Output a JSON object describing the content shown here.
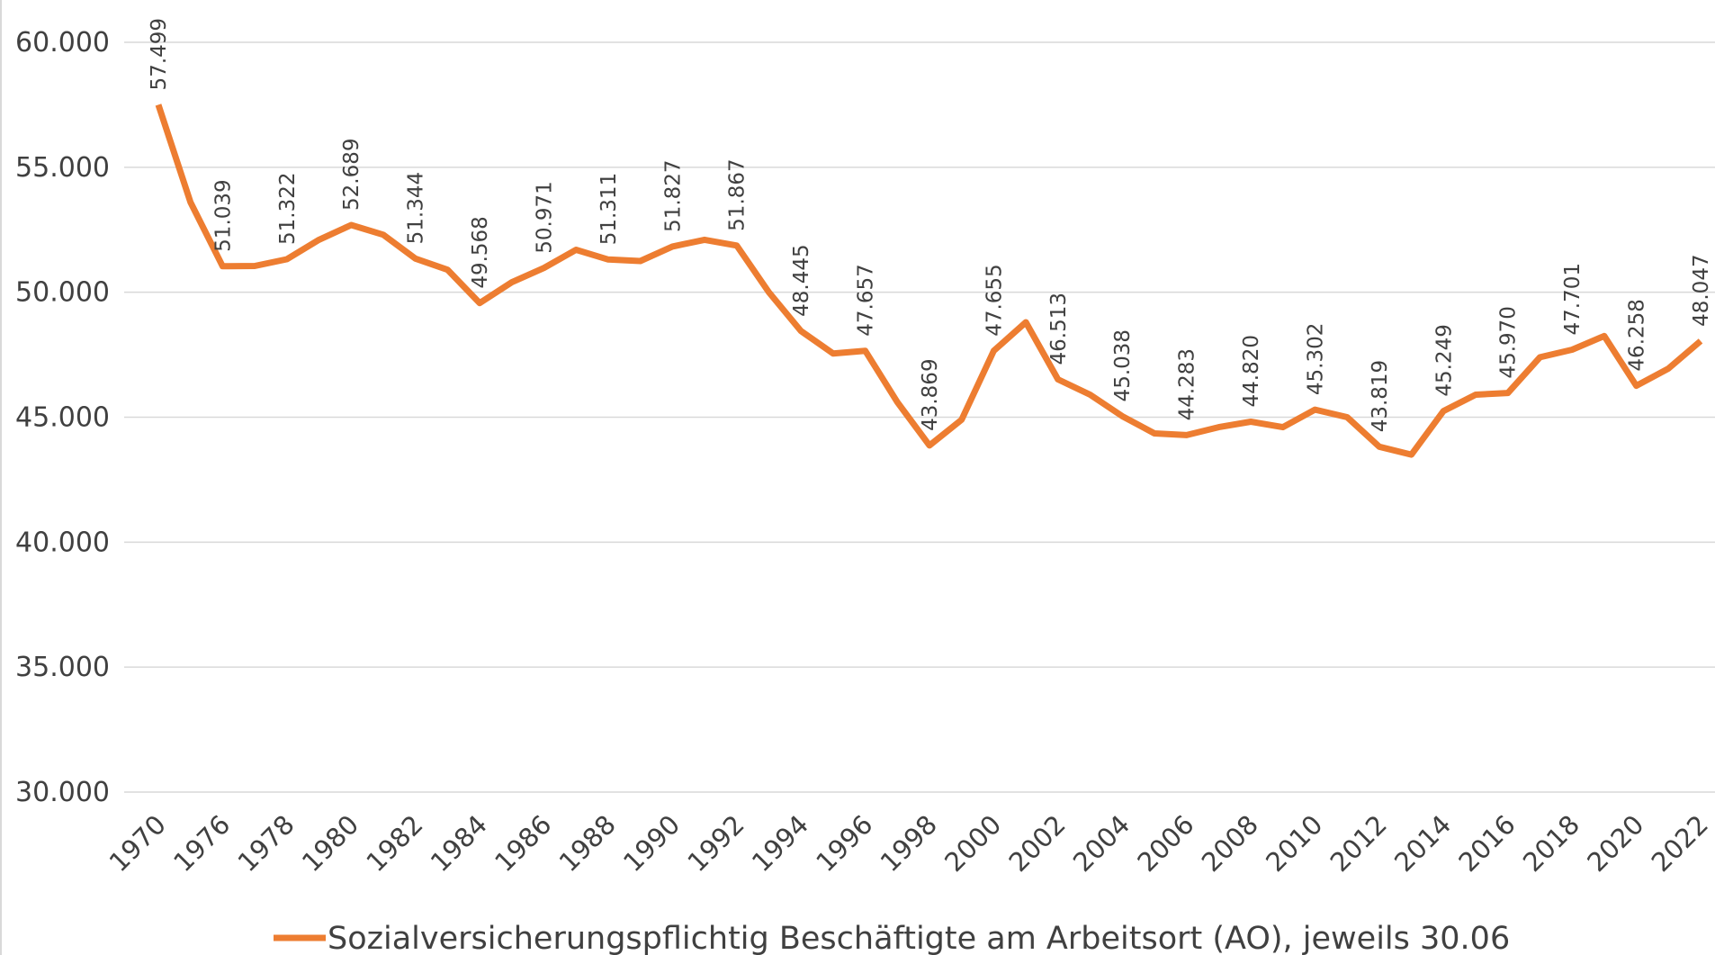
{
  "chart_data": {
    "type": "line",
    "categories": [
      "1970",
      null,
      "1976",
      null,
      "1978",
      null,
      "1980",
      null,
      "1982",
      null,
      "1984",
      null,
      "1986",
      null,
      "1988",
      null,
      "1990",
      null,
      "1992",
      null,
      "1994",
      null,
      "1996",
      null,
      "1998",
      null,
      "2000",
      null,
      "2002",
      null,
      "2004",
      null,
      "2006",
      null,
      "2008",
      null,
      "2010",
      null,
      "2012",
      null,
      "2014",
      null,
      "2016",
      null,
      "2018",
      null,
      "2020",
      null,
      "2022"
    ],
    "series": [
      {
        "name": "Sozialversicherungspflichtig Beschäftigte am Arbeitsort (AO), jeweils 30.06",
        "color": "#ed7d31",
        "values": [
          57499,
          53600,
          51039,
          51050,
          51322,
          52100,
          52689,
          52300,
          51344,
          50900,
          49568,
          50400,
          50971,
          51700,
          51311,
          51250,
          51827,
          52100,
          51867,
          50000,
          48445,
          47550,
          47657,
          45600,
          43869,
          44900,
          47655,
          48800,
          46513,
          45900,
          45038,
          44350,
          44283,
          44600,
          44820,
          44600,
          45302,
          45000,
          43819,
          43500,
          45249,
          45900,
          45970,
          47400,
          47701,
          48250,
          46258,
          46950,
          48047
        ],
        "value_labels": [
          "57.499",
          null,
          "51.039",
          null,
          "51.322",
          null,
          "52.689",
          null,
          "51.344",
          null,
          "49.568",
          null,
          "50.971",
          null,
          "51.311",
          null,
          "51.827",
          null,
          "51.867",
          null,
          "48.445",
          null,
          "47.657",
          null,
          "43.869",
          null,
          "47.655",
          null,
          "46.513",
          null,
          "45.038",
          null,
          "44.283",
          null,
          "44.820",
          null,
          "45.302",
          null,
          "43.819",
          null,
          "45.249",
          null,
          "45.970",
          null,
          "47.701",
          null,
          "46.258",
          null,
          "48.047"
        ]
      }
    ],
    "ylim": [
      30000,
      60000
    ],
    "yticks": [
      {
        "value": 30000,
        "label": "30.000"
      },
      {
        "value": 35000,
        "label": "35.000"
      },
      {
        "value": 40000,
        "label": "40.000"
      },
      {
        "value": 45000,
        "label": "45.000"
      },
      {
        "value": 50000,
        "label": "50.000"
      },
      {
        "value": 55000,
        "label": "55.000"
      },
      {
        "value": 60000,
        "label": "60.000"
      }
    ],
    "grid": true,
    "legend": "bottom"
  }
}
